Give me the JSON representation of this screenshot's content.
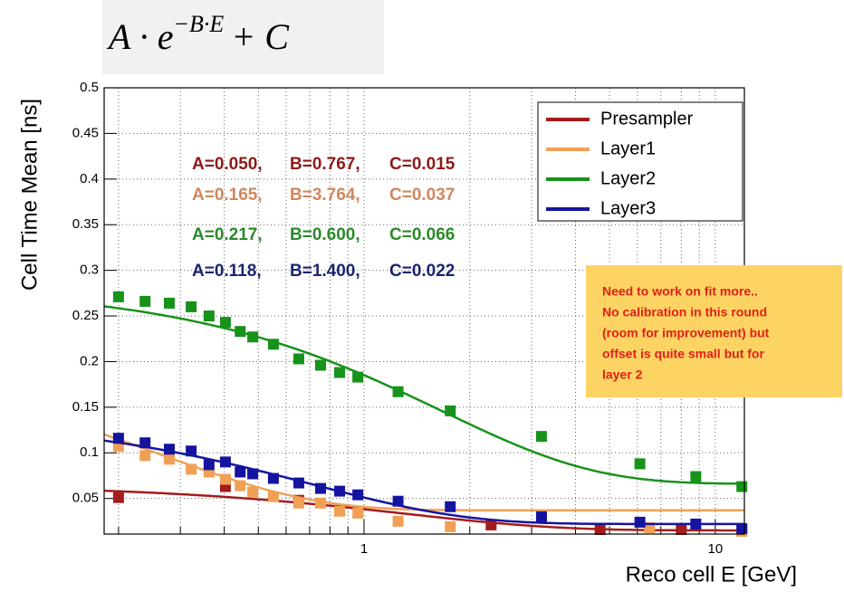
{
  "chart_data": {
    "type": "scatter",
    "formula": {
      "base": "A · e",
      "exponent": "−B·E",
      "tail": "+ C"
    },
    "ylabel": "Cell Time Mean [ns]",
    "xlabel": "Reco cell E [GeV]",
    "xlog": true,
    "xlim": [
      0.182,
      12.1
    ],
    "ylim": [
      0.011,
      0.5
    ],
    "xticks": [
      1,
      10
    ],
    "xminorticks": [
      0.2,
      0.3,
      0.4,
      0.5,
      0.6,
      0.7,
      0.8,
      0.9,
      2,
      3,
      4,
      5,
      6,
      7,
      8,
      9
    ],
    "yticks": [
      0.05,
      0.1,
      0.15,
      0.2,
      0.25,
      0.3,
      0.35,
      0.4,
      0.45,
      0.5
    ],
    "grid": true,
    "legend": "top-right",
    "series": [
      {
        "name": "Presampler",
        "color": "#a51c1c",
        "label_color": "#8e1a1a",
        "x": [
          0.2,
          0.403,
          0.652,
          0.852,
          2.3,
          4.7,
          8.0,
          11.9
        ],
        "values": [
          0.051,
          0.063,
          0.048,
          0.037,
          0.021,
          0.016,
          0.016,
          0.015
        ],
        "fit": {
          "A": 0.05,
          "B": 0.767,
          "C": 0.015
        },
        "fit_labels": [
          "A=0.050,",
          "B=0.767,",
          "C=0.015"
        ]
      },
      {
        "name": "Layer1",
        "color": "#f0a055",
        "label_color": "#d1875c",
        "x": [
          0.2,
          0.238,
          0.279,
          0.322,
          0.362,
          0.403,
          0.444,
          0.482,
          0.552,
          0.652,
          0.752,
          0.852,
          0.96,
          1.25,
          1.76,
          3.2,
          6.5,
          11.9
        ],
        "values": [
          0.107,
          0.097,
          0.093,
          0.082,
          0.079,
          0.071,
          0.064,
          0.057,
          0.052,
          0.045,
          0.045,
          0.036,
          0.034,
          0.025,
          0.019,
          0.029,
          0.018,
          0.014
        ],
        "fit": {
          "A": 0.165,
          "B": 3.764,
          "C": 0.037
        },
        "fit_labels": [
          "A=0.165,",
          "B=3.764,",
          "C=0.037"
        ]
      },
      {
        "name": "Layer2",
        "color": "#17921a",
        "label_color": "#2b8a2b",
        "x": [
          0.2,
          0.238,
          0.279,
          0.322,
          0.362,
          0.403,
          0.444,
          0.482,
          0.552,
          0.652,
          0.752,
          0.852,
          0.96,
          1.25,
          1.76,
          3.2,
          6.1,
          8.8,
          11.9
        ],
        "values": [
          0.271,
          0.266,
          0.264,
          0.26,
          0.25,
          0.243,
          0.233,
          0.227,
          0.219,
          0.203,
          0.196,
          0.188,
          0.183,
          0.167,
          0.146,
          0.118,
          0.088,
          0.074,
          0.063
        ],
        "fit": {
          "A": 0.217,
          "B": 0.6,
          "C": 0.066
        },
        "fit_labels": [
          "A=0.217,",
          "B=0.600,",
          "C=0.066"
        ]
      },
      {
        "name": "Layer3",
        "color": "#1414a0",
        "label_color": "#1c2370",
        "x": [
          0.2,
          0.238,
          0.279,
          0.322,
          0.362,
          0.403,
          0.444,
          0.482,
          0.552,
          0.652,
          0.752,
          0.852,
          0.96,
          1.25,
          1.76,
          3.2,
          6.1,
          8.8,
          11.9
        ],
        "values": [
          0.116,
          0.111,
          0.104,
          0.102,
          0.087,
          0.09,
          0.079,
          0.077,
          0.072,
          0.067,
          0.061,
          0.058,
          0.054,
          0.047,
          0.041,
          0.03,
          0.024,
          0.022,
          0.017
        ],
        "fit": {
          "A": 0.118,
          "B": 1.4,
          "C": 0.022
        },
        "fit_labels": [
          "A=0.118,",
          "B=1.400,",
          "C=0.022"
        ]
      }
    ],
    "note": [
      "Need to work on fit more..",
      "No calibration in this round",
      "(room for improvement) but",
      "offset is quite small but for",
      "layer 2"
    ]
  }
}
